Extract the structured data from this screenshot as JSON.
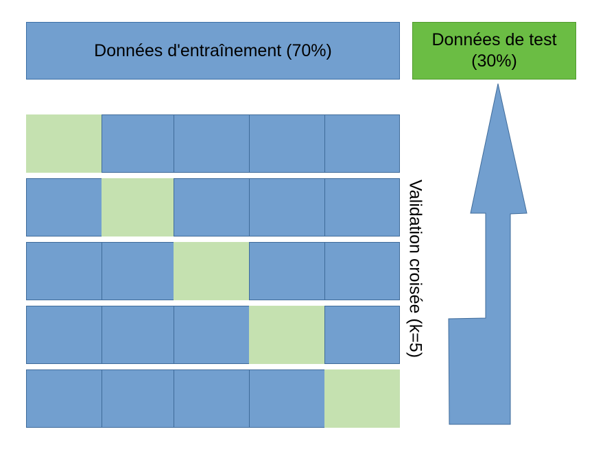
{
  "train": {
    "label": "Données d'entraînement (70%)",
    "color": "#729fcf"
  },
  "test": {
    "label": "Données de test (30%)",
    "color": "#6bbd44"
  },
  "cross_validation": {
    "label": "Validation croisée  (k=5)",
    "k": 5,
    "validation_folds": [
      0,
      1,
      2,
      3,
      4
    ],
    "fold_color": "#729fcf",
    "validation_color": "#c5e1b0"
  },
  "arrow": {
    "icon": "up-arrow-icon",
    "color": "#729fcf"
  }
}
